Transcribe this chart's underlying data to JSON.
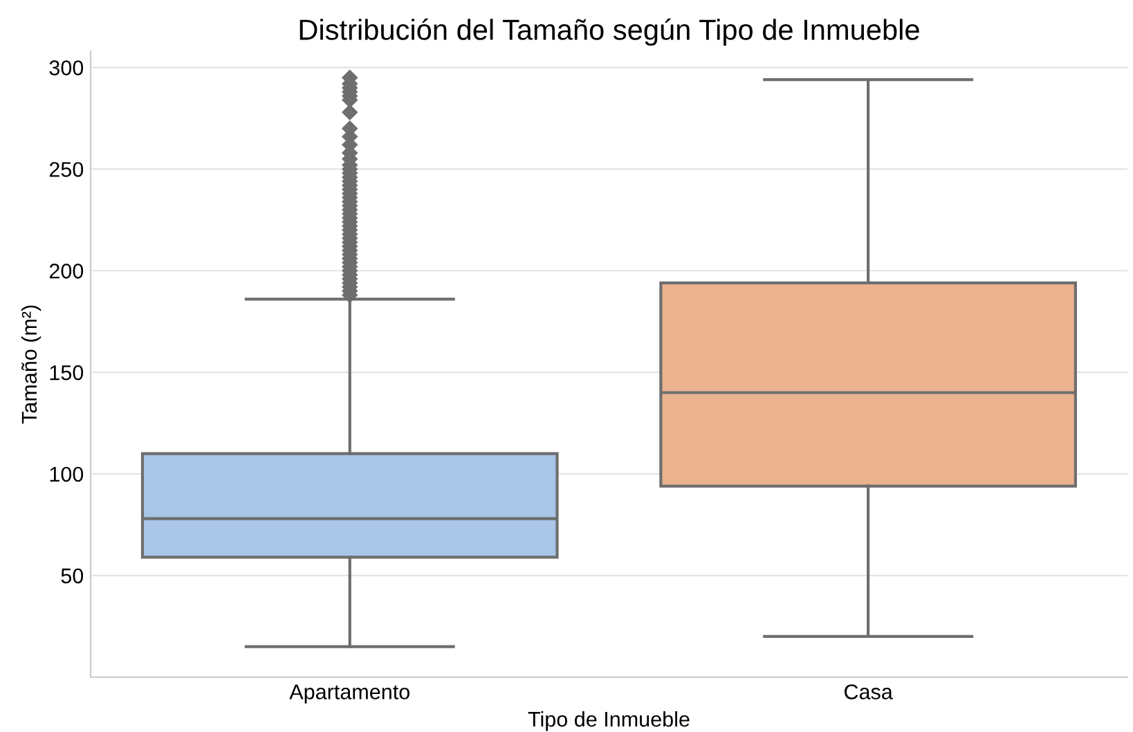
{
  "chart_data": {
    "type": "box",
    "title": "Distribución del Tamaño según Tipo de Inmueble",
    "xlabel": "Tipo de Inmueble",
    "ylabel": "Tamaño (m²)",
    "categories": [
      "Apartamento",
      "Casa"
    ],
    "colors": [
      "#a9c6e8",
      "#eab28f"
    ],
    "boxes": [
      {
        "low": 15,
        "q1": 59,
        "median": 78,
        "q3": 110,
        "high": 186,
        "outliers": [
          188,
          190,
          192,
          194,
          196,
          198,
          200,
          202,
          204,
          206,
          208,
          210,
          212,
          214,
          216,
          218,
          220,
          222,
          224,
          226,
          228,
          230,
          232,
          234,
          236,
          238,
          240,
          242,
          244,
          246,
          248,
          250,
          252,
          255,
          258,
          262,
          266,
          270,
          278,
          284,
          286,
          288,
          290,
          292,
          295
        ]
      },
      {
        "low": 20,
        "q1": 94,
        "median": 140,
        "q3": 194,
        "high": 294
      }
    ],
    "ylim": [
      0,
      308
    ],
    "yticks": [
      50,
      100,
      150,
      200,
      250,
      300
    ],
    "grid": "y"
  }
}
